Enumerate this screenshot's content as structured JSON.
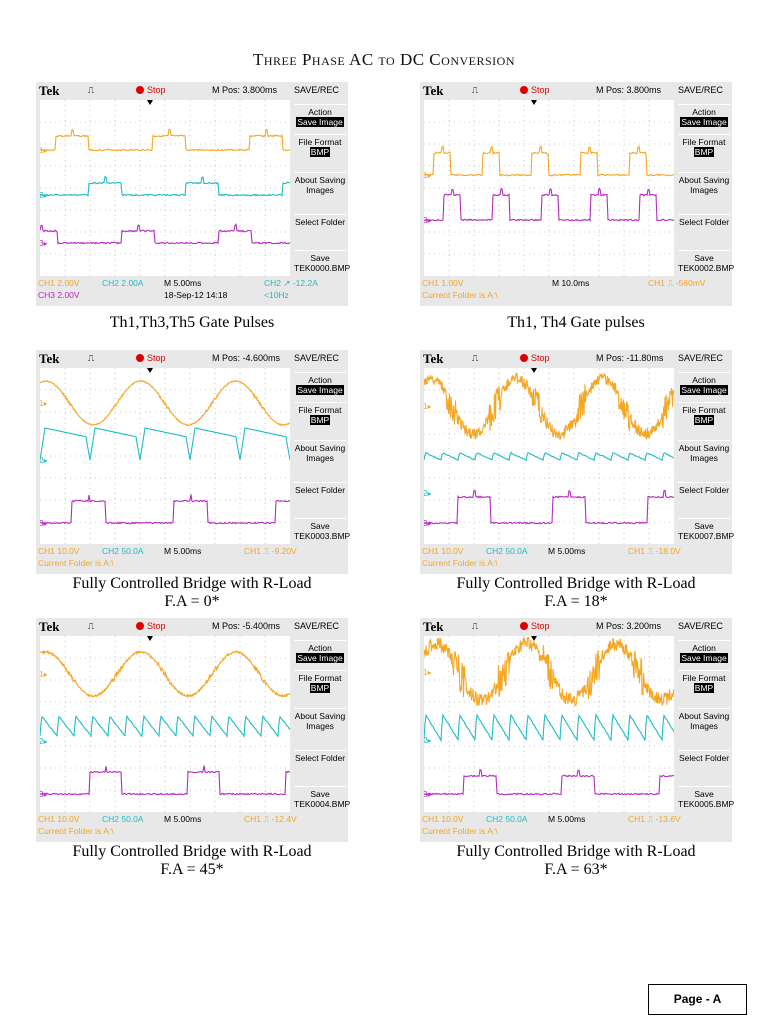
{
  "title": "Three Phase AC to DC Conversion",
  "colors": {
    "ch1": "#f5a623",
    "ch2": "#1fbcc4",
    "ch3": "#b52cc0",
    "stop": "#dd0000",
    "bezel": "#e8e8e8"
  },
  "scopes": [
    {
      "brand": "Tek",
      "status": "Stop",
      "mpos": "M Pos: 3.800ms",
      "menu_title": "SAVE/REC",
      "action": "Action",
      "action_value": "Save Image",
      "file_format": "File Format",
      "file_format_value": "BMP",
      "about": "About Saving Images",
      "select": "Select Folder",
      "save": "Save",
      "save_file": "TEK0000.BMP",
      "footer": {
        "ch1": "CH1  2.00V",
        "ch2": "CH2  2.00A",
        "ch3": "CH3  2.00V",
        "time": "M 5.00ms",
        "date": "18-Sep-12 14:18",
        "trig": "CH2 ↗ -12.2A",
        "freq": "<10Hz"
      },
      "channels": [
        "1",
        "2",
        "3"
      ],
      "caption": [
        "Th1,Th3,Th5 Gate Pulses"
      ]
    },
    {
      "brand": "Tek",
      "status": "Stop",
      "mpos": "M Pos: 3.800ms",
      "menu_title": "SAVE/REC",
      "action": "Action",
      "action_value": "Save Image",
      "file_format": "File Format",
      "file_format_value": "BMP",
      "about": "About Saving Images",
      "select": "Select Folder",
      "save": "Save",
      "save_file": "TEK0002.BMP",
      "footer": {
        "ch1": "CH1  1.00V",
        "time": "M 10.0ms",
        "trig": "CH1 ⎍ -560mV",
        "folder": "Current Folder is A:\\"
      },
      "channels": [
        "1",
        "3"
      ],
      "caption": [
        "Th1, Th4 Gate pulses"
      ]
    },
    {
      "brand": "Tek",
      "status": "Stop",
      "mpos": "M Pos: -4.600ms",
      "menu_title": "SAVE/REC",
      "action": "Action",
      "action_value": "Save Image",
      "file_format": "File Format",
      "file_format_value": "BMP",
      "about": "About Saving Images",
      "select": "Select Folder",
      "save": "Save",
      "save_file": "TEK0003.BMP",
      "footer": {
        "ch1": "CH1  10.0V",
        "ch2": "CH2  50.0A",
        "time": "M 5.00ms",
        "trig": "CH1 ⎍ -9.20V",
        "folder": "Current Folder is A:\\"
      },
      "channels": [
        "1",
        "2",
        "3"
      ],
      "caption": [
        "Fully Controlled Bridge with R-Load",
        "F.A = 0*"
      ]
    },
    {
      "brand": "Tek",
      "status": "Stop",
      "mpos": "M Pos: -11.80ms",
      "menu_title": "SAVE/REC",
      "action": "Action",
      "action_value": "Save Image",
      "file_format": "File Format",
      "file_format_value": "BMP",
      "about": "About Saving Images",
      "select": "Select Folder",
      "save": "Save",
      "save_file": "TEK0007.BMP",
      "footer": {
        "ch1": "CH1  10.0V",
        "ch2": "CH2  50.0A",
        "time": "M 5.00ms",
        "trig": "CH1 ⎍ -18.0V",
        "folder": "Current Folder is A:\\"
      },
      "channels": [
        "1",
        "2",
        "3"
      ],
      "caption": [
        "Fully Controlled Bridge with R-Load",
        "F.A = 18*"
      ]
    },
    {
      "brand": "Tek",
      "status": "Stop",
      "mpos": "M Pos: -5.400ms",
      "menu_title": "SAVE/REC",
      "action": "Action",
      "action_value": "Save Image",
      "file_format": "File Format",
      "file_format_value": "BMP",
      "about": "About Saving Images",
      "select": "Select Folder",
      "save": "Save",
      "save_file": "TEK0004.BMP",
      "footer": {
        "ch1": "CH1  10.0V",
        "ch2": "CH2  50.0A",
        "time": "M 5.00ms",
        "trig": "CH1 ⎍ -12.4V",
        "folder": "Current Folder is A:\\"
      },
      "channels": [
        "1",
        "2",
        "3"
      ],
      "caption": [
        "Fully Controlled Bridge with R-Load",
        "F.A = 45*"
      ]
    },
    {
      "brand": "Tek",
      "status": "Stop",
      "mpos": "M Pos: 3.200ms",
      "menu_title": "SAVE/REC",
      "action": "Action",
      "action_value": "Save Image",
      "file_format": "File Format",
      "file_format_value": "BMP",
      "about": "About Saving Images",
      "select": "Select Folder",
      "save": "Save",
      "save_file": "TEK0005.BMP",
      "footer": {
        "ch1": "CH1  10.0V",
        "ch2": "CH2  50.0A",
        "time": "M 5.00ms",
        "trig": "CH1 ⎍ -13.6V",
        "folder": "Current Folder is A:\\"
      },
      "channels": [
        "1",
        "2",
        "3"
      ],
      "caption": [
        "Fully Controlled Bridge with R-Load",
        "F.A = 63*"
      ]
    }
  ],
  "page_label": "Page - A"
}
